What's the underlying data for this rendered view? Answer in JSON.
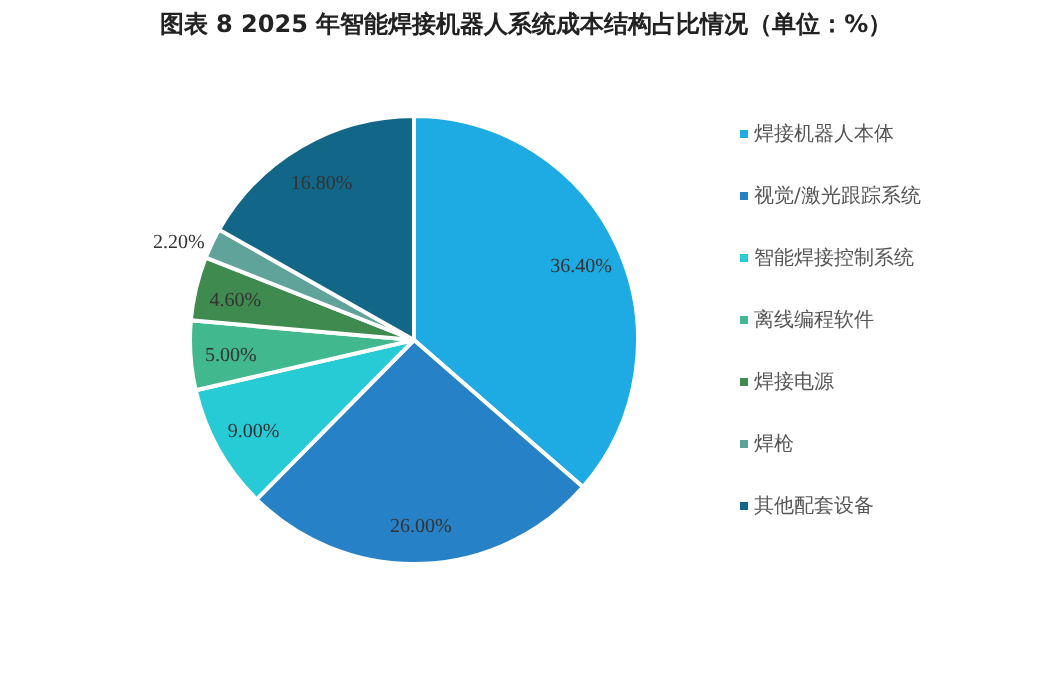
{
  "chart_data": {
    "type": "pie",
    "title": "图表 8  2025 年智能焊接机器人系统成本结构占比情况（单位：%）",
    "categories": [
      "焊接机器人本体",
      "视觉/激光跟踪系统",
      "智能焊接控制系统",
      "离线编程软件",
      "焊接电源",
      "焊枪",
      "其他配套设备"
    ],
    "values": [
      36.4,
      26.0,
      9.0,
      5.0,
      4.6,
      2.2,
      16.8
    ],
    "value_labels": [
      "36.40%",
      "26.00%",
      "9.00%",
      "5.00%",
      "4.60%",
      "2.20%",
      "16.80%"
    ],
    "colors": [
      "#1eaae2",
      "#2781c6",
      "#27cbd6",
      "#42b88f",
      "#3e8a4f",
      "#5fa39a",
      "#126789"
    ],
    "legend": "right"
  }
}
